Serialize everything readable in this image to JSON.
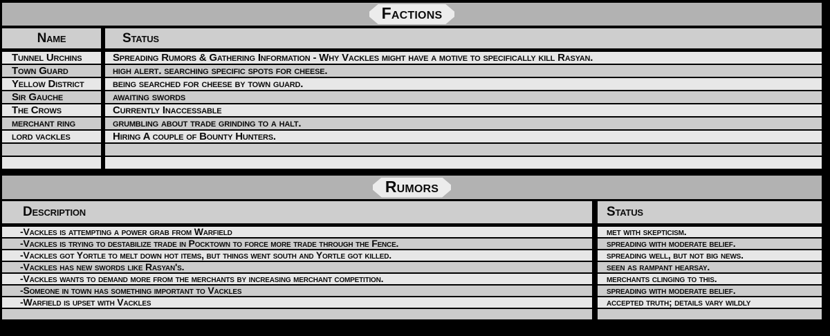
{
  "colors": {
    "background": "#000000",
    "section_bar": "#b2b2b2",
    "badge": "#ececec",
    "header_row": "#cecece",
    "row_light": "#e7e7e7",
    "row_dark": "#cccccc",
    "text": "#0b0b0b"
  },
  "factions": {
    "title": "Factions",
    "columns": {
      "name": "Name",
      "status": "Status"
    },
    "rows": [
      {
        "name": "Tunnel Urchins",
        "status": "Spreading Rumors & Gathering Information - Why Vackles might have a motive to specifically kill Rasyan."
      },
      {
        "name": "Town Guard",
        "status": "high alert. searching specific spots for cheese."
      },
      {
        "name": "Yellow District",
        "status": "being searched for cheese by town guard."
      },
      {
        "name": "Sir Gauche",
        "status": "awaiting swords"
      },
      {
        "name": "The Crows",
        "status": "Currently Inaccessable"
      },
      {
        "name": "merchant ring",
        "status": "grumbling about trade grinding to a halt."
      },
      {
        "name": "lord vackles",
        "status": "Hiring A couple of Bounty Hunters."
      },
      {
        "name": "",
        "status": ""
      },
      {
        "name": "",
        "status": ""
      }
    ]
  },
  "rumors": {
    "title": "Rumors",
    "columns": {
      "description": "Description",
      "status": "Status"
    },
    "rows": [
      {
        "description": "-Vackles is attempting a power grab from Warfield",
        "status": "met with skepticism."
      },
      {
        "description": "-Vackles is trying to destabilize trade in Pocktown to force more trade through the Fence.",
        "status": "spreading with moderate belief."
      },
      {
        "description": "-Vackles got Yortle to melt down hot items, but things went south and Yortle got killed.",
        "status": "spreading well, but not big news."
      },
      {
        "description": "-Vackles has new swords like Rasyan's.",
        "status": "seen as rampant hearsay."
      },
      {
        "description": "-Vackles wants to demand more from the merchants by increasing merchant competition.",
        "status": "merchants clinging to this."
      },
      {
        "description": "-Someone in town has something important to Vackles",
        "status": "spreading with moderate belief."
      },
      {
        "description": "-Warfield is upset with Vackles",
        "status": "accepted truth; details vary wildly"
      },
      {
        "description": "",
        "status": ""
      }
    ]
  }
}
